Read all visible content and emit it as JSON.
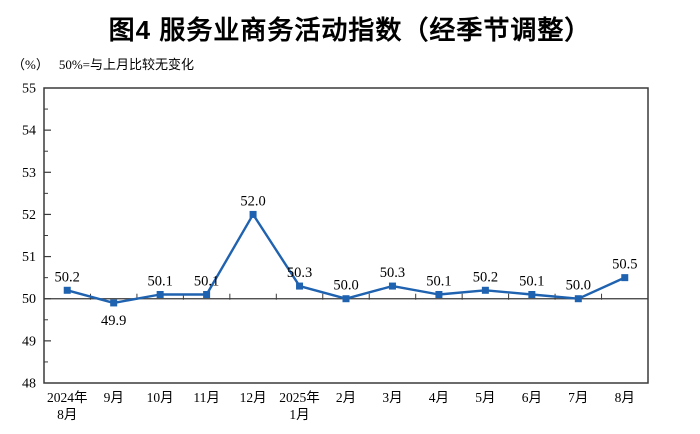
{
  "chart_data": {
    "type": "line",
    "title": "图4  服务业商务活动指数（经季节调整）",
    "unit_label": "（%）",
    "note": "50%=与上月比较无变化",
    "x_labels": [
      [
        "2024年",
        "8月"
      ],
      [
        "9月"
      ],
      [
        "10月"
      ],
      [
        "11月"
      ],
      [
        "12月"
      ],
      [
        "2025年",
        "1月"
      ],
      [
        "2月"
      ],
      [
        "3月"
      ],
      [
        "4月"
      ],
      [
        "5月"
      ],
      [
        "6月"
      ],
      [
        "7月"
      ],
      [
        "8月"
      ]
    ],
    "values": [
      50.2,
      49.9,
      50.1,
      50.1,
      52.0,
      50.3,
      50.0,
      50.3,
      50.1,
      50.2,
      50.1,
      50.0,
      50.5
    ],
    "point_labels": [
      "50.2",
      "49.9",
      "50.1",
      "50.1",
      "52.0",
      "50.3",
      "50.0",
      "50.3",
      "50.1",
      "50.2",
      "50.1",
      "50.0",
      "50.5"
    ],
    "label_below_indices": [
      1
    ],
    "ylim": [
      48,
      55
    ],
    "y_major_step": 1,
    "y_minor_step": 0.5,
    "y_tick_labels": [
      "48",
      "49",
      "50",
      "51",
      "52",
      "53",
      "54",
      "55"
    ],
    "reference_line": 50,
    "grid": false,
    "legend": null,
    "colors": {
      "line": "#1f62b0",
      "marker": "#1f62b0",
      "axis": "#3a3a3a",
      "text": "#000000"
    }
  }
}
